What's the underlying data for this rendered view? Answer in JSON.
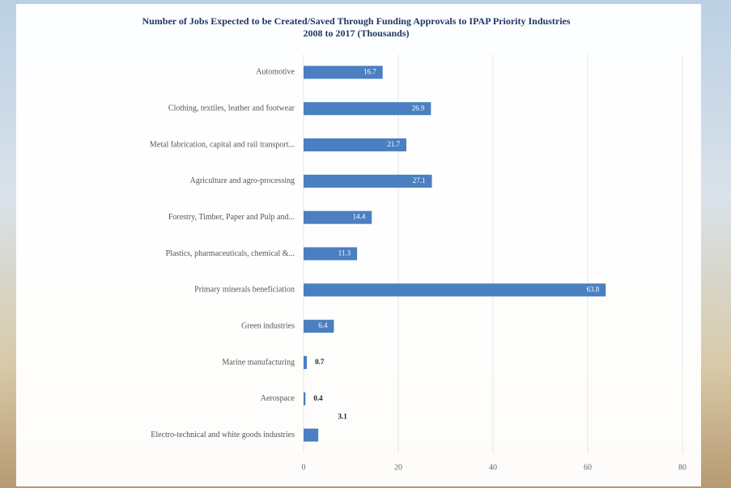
{
  "chart_data": {
    "type": "hbar",
    "title": "Number of Jobs Expected to be Created/Saved Through Funding Approvals to IPAP Priority Industries",
    "subtitle": "2008 to 2017 (Thousands)",
    "categories": [
      "Automotive",
      "Clothing, textiles, leather and footwear",
      "Metal fabrication, capital and rail transport...",
      "Agriculture and agro-processing",
      "Forestry, Timber, Paper and Pulp and...",
      "Plastics, pharmaceuticals, chemical &...",
      "Primary minerals beneficiation",
      "Green industries",
      "Marine manufacturing",
      "Aerospace",
      "Electro-technical and white goods industries"
    ],
    "values": [
      16.7,
      26.9,
      21.7,
      27.1,
      14.4,
      11.3,
      63.8,
      6.4,
      0.7,
      0.4,
      3.1
    ],
    "color": "#4a7fc1",
    "xlim": [
      0,
      80
    ],
    "xticks": [
      0,
      20,
      40,
      60,
      80
    ],
    "grid": true
  }
}
